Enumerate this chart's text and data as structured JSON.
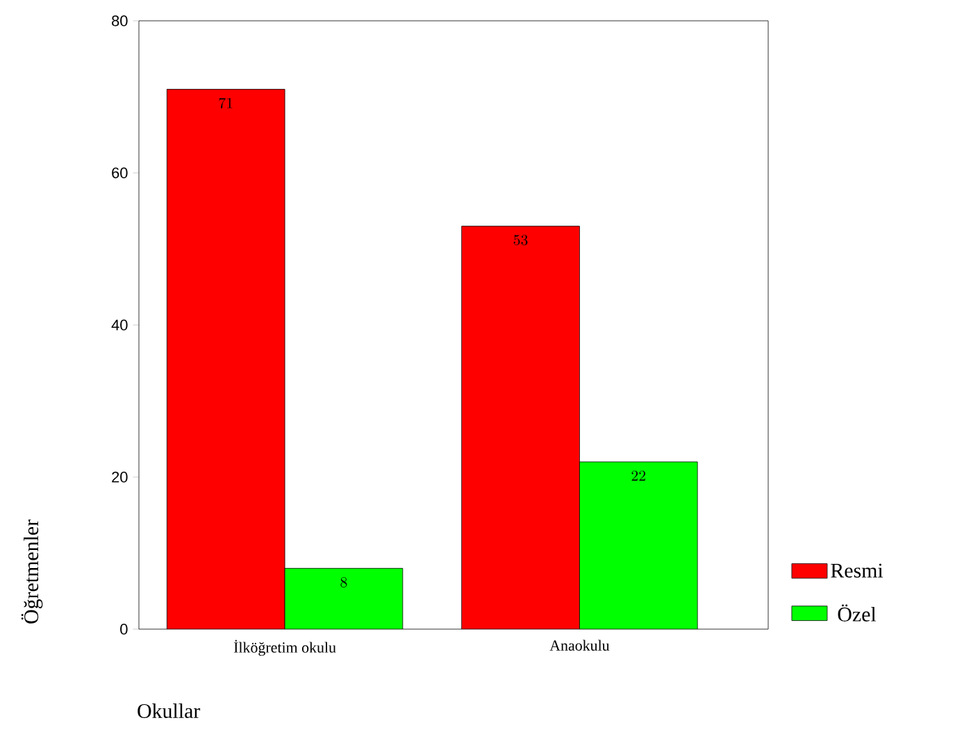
{
  "chart_data": {
    "type": "bar",
    "xlabel": "Okullar",
    "ylabel": "Öğretmenler",
    "categories": [
      "İlköğretim okulu",
      "Anaokulu"
    ],
    "series": [
      {
        "name": "Resmi",
        "color": "#ff0000",
        "values": [
          71,
          53
        ]
      },
      {
        "name": "Özel",
        "color": "#00ff00",
        "values": [
          8,
          22
        ]
      }
    ],
    "ylim": [
      0,
      80
    ],
    "yticks": [
      0,
      20,
      40,
      60,
      80
    ],
    "data_labels": true,
    "legend": "bottom right",
    "grid": false
  }
}
